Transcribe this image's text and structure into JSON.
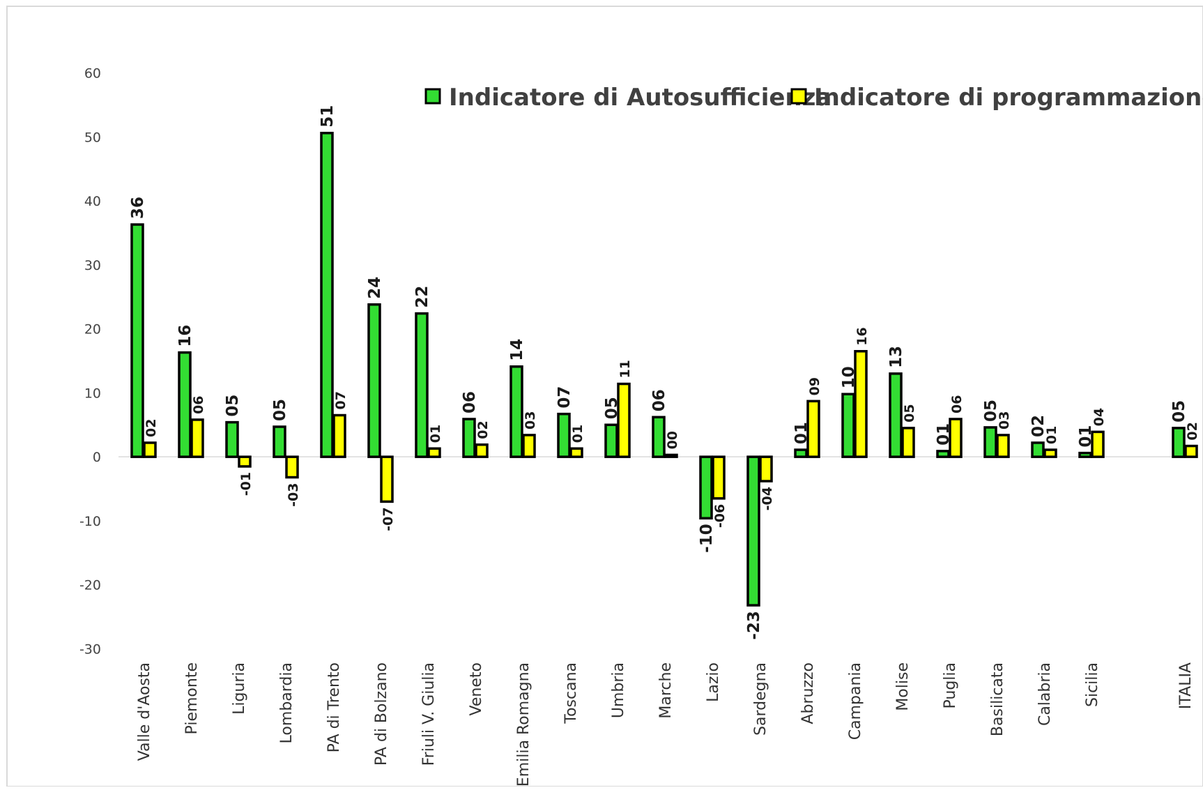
{
  "chart_data": {
    "type": "bar",
    "categories": [
      "Valle d'Aosta",
      "Piemonte",
      "Liguria",
      "Lombardia",
      "PA di Trento",
      "PA di Bolzano",
      "Friuli V. Giulia",
      "Veneto",
      "Emilia Romagna",
      "Toscana",
      "Umbria",
      "Marche",
      "Lazio",
      "Sardegna",
      "Abruzzo",
      "Campania",
      "Molise",
      "Puglia",
      "Basilicata",
      "Calabria",
      "Sicilia",
      "ITALIA"
    ],
    "series": [
      {
        "name": "Indicatore di Autosufficienza",
        "color": "#33dd33",
        "values": [
          36.3,
          16.3,
          5.4,
          4.7,
          50.6,
          23.8,
          22.4,
          5.9,
          14.1,
          6.7,
          5.0,
          6.2,
          -9.6,
          -23.2,
          1.1,
          9.8,
          13.0,
          0.9,
          4.6,
          2.2,
          0.6,
          4.5
        ],
        "labels": [
          "36",
          "16",
          "05",
          "05",
          "51",
          "24",
          "22",
          "06",
          "14",
          "07",
          "05",
          "06",
          "-10",
          "-23",
          "01",
          "10",
          "13",
          "01",
          "05",
          "02",
          "01",
          "05"
        ]
      },
      {
        "name": "Indicatore di programmazione",
        "color": "#ffff00",
        "values": [
          2.2,
          5.8,
          -1.5,
          -3.2,
          6.5,
          -7.0,
          1.3,
          1.9,
          3.4,
          1.3,
          11.4,
          0.3,
          -6.5,
          -3.8,
          8.7,
          16.5,
          4.5,
          5.9,
          3.4,
          1.1,
          3.9,
          1.7
        ],
        "labels": [
          "02",
          "06",
          "-01",
          "-03",
          "07",
          "-07",
          "01",
          "02",
          "03",
          "01",
          "11",
          "00",
          "-06",
          "-04",
          "09",
          "16",
          "05",
          "06",
          "03",
          "01",
          "04",
          "02"
        ]
      }
    ],
    "y_ticks": [
      "60",
      "50",
      "40",
      "30",
      "20",
      "10",
      "0",
      "-10",
      "-20",
      "-30"
    ],
    "ylim": [
      -30,
      60
    ],
    "grid": false,
    "legend_position": "top-right"
  }
}
